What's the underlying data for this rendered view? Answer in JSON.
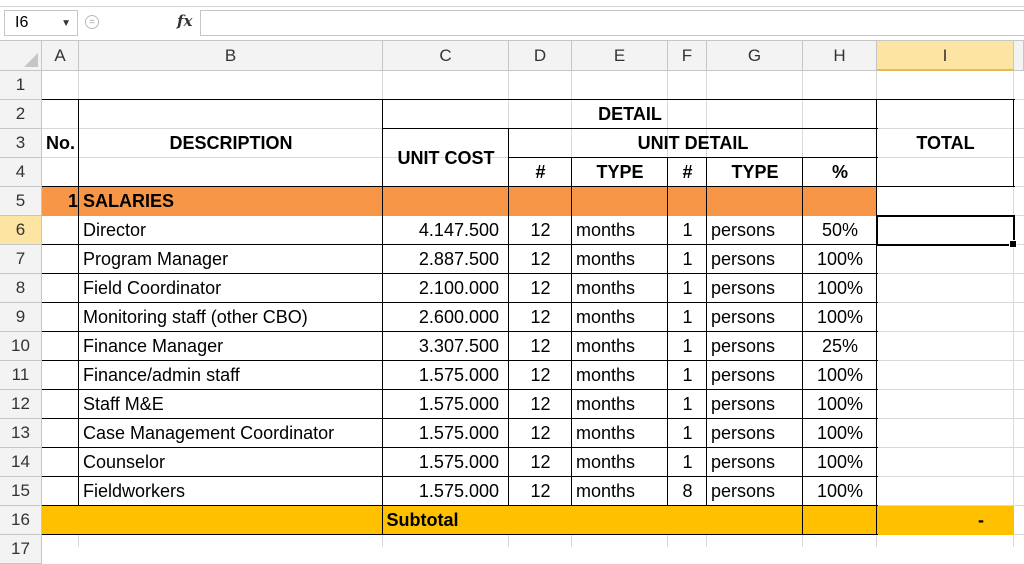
{
  "formula_bar": {
    "name_box": "I6",
    "fx_label": "fx",
    "formula": ""
  },
  "columns": [
    "A",
    "B",
    "C",
    "D",
    "E",
    "F",
    "G",
    "H",
    "I"
  ],
  "selected_column": "I",
  "rows": [
    "1",
    "2",
    "3",
    "4",
    "5",
    "6",
    "7",
    "8",
    "9",
    "10",
    "11",
    "12",
    "13",
    "14",
    "15",
    "16",
    "17"
  ],
  "selected_row": "6",
  "header": {
    "no": "No.",
    "description": "DESCRIPTION",
    "detail": "DETAIL",
    "unit_cost": "UNIT COST",
    "unit_detail": "UNIT DETAIL",
    "total": "TOTAL",
    "hash1": "#",
    "type1": "TYPE",
    "hash2": "#",
    "type2": "TYPE",
    "pct": "%"
  },
  "section": {
    "no": "1",
    "label": "SALARIES"
  },
  "items": [
    {
      "desc": "Director",
      "cost": "4.147.500",
      "n1": "12",
      "t1": "months",
      "n2": "1",
      "t2": "persons",
      "pct": "50%"
    },
    {
      "desc": "Program Manager",
      "cost": "2.887.500",
      "n1": "12",
      "t1": "months",
      "n2": "1",
      "t2": "persons",
      "pct": "100%"
    },
    {
      "desc": "Field Coordinator",
      "cost": "2.100.000",
      "n1": "12",
      "t1": "months",
      "n2": "1",
      "t2": "persons",
      "pct": "100%"
    },
    {
      "desc": "Monitoring staff (other CBO)",
      "cost": "2.600.000",
      "n1": "12",
      "t1": "months",
      "n2": "1",
      "t2": "persons",
      "pct": "100%"
    },
    {
      "desc": "Finance Manager",
      "cost": "3.307.500",
      "n1": "12",
      "t1": "months",
      "n2": "1",
      "t2": "persons",
      "pct": "25%"
    },
    {
      "desc": "Finance/admin staff",
      "cost": "1.575.000",
      "n1": "12",
      "t1": "months",
      "n2": "1",
      "t2": "persons",
      "pct": "100%"
    },
    {
      "desc": "Staff M&E",
      "cost": "1.575.000",
      "n1": "12",
      "t1": "months",
      "n2": "1",
      "t2": "persons",
      "pct": "100%"
    },
    {
      "desc": "Case Management Coordinator",
      "cost": "1.575.000",
      "n1": "12",
      "t1": "months",
      "n2": "1",
      "t2": "persons",
      "pct": "100%"
    },
    {
      "desc": "Counselor",
      "cost": "1.575.000",
      "n1": "12",
      "t1": "months",
      "n2": "1",
      "t2": "persons",
      "pct": "100%"
    },
    {
      "desc": "Fieldworkers",
      "cost": "1.575.000",
      "n1": "12",
      "t1": "months",
      "n2": "8",
      "t2": "persons",
      "pct": "100%"
    }
  ],
  "subtotal": {
    "label": "Subtotal",
    "total": "-"
  },
  "colors": {
    "section_fill": "#f79646",
    "subtotal_fill": "#ffc000",
    "header_selected": "#fce4a2"
  }
}
